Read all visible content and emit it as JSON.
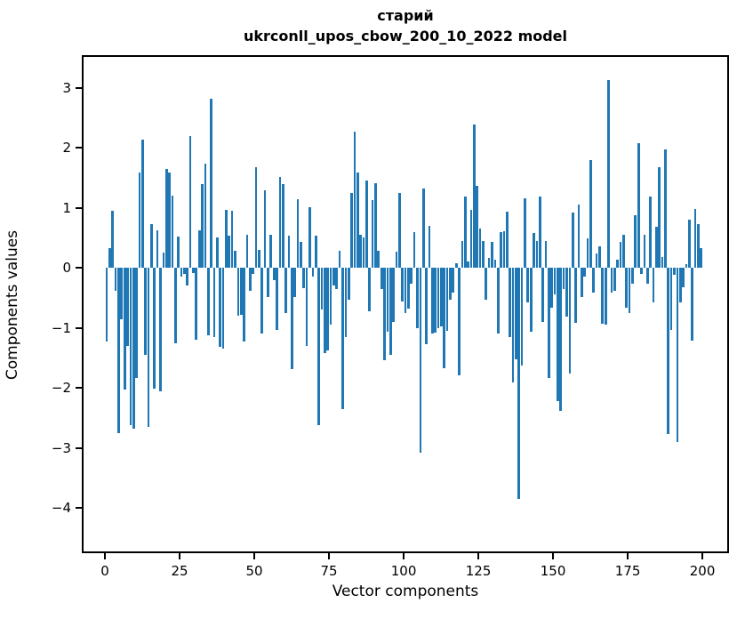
{
  "header": {
    "title_line1": "старий",
    "title_line2": "ukrconll_upos_cbow_200_10_2022 model"
  },
  "chart_data": {
    "type": "bar",
    "title": "старий",
    "subtitle": "ukrconll_upos_cbow_200_10_2022 model",
    "xlabel": "Vector components",
    "ylabel": "Components values",
    "bar_color": "#1f77b4",
    "axis_color": "#000000",
    "background_color": "#ffffff",
    "grid": false,
    "legend": false,
    "xlim": [
      -7.74,
      208.9
    ],
    "ylim": [
      -4.75,
      3.54
    ],
    "x_ticks": [
      0,
      25,
      50,
      75,
      100,
      125,
      150,
      175,
      200
    ],
    "x_tick_labels": [
      "0",
      "25",
      "50",
      "75",
      "100",
      "125",
      "150",
      "175",
      "200"
    ],
    "y_ticks": [
      3,
      2,
      1,
      0,
      -1,
      -2,
      -3,
      -4
    ],
    "y_tick_labels": [
      "3",
      "2",
      "1",
      "0",
      "−1",
      "−2",
      "−3",
      "−4"
    ],
    "x": "component index 0..199",
    "values": [
      -1.22,
      0.33,
      0.95,
      -0.38,
      -2.75,
      -0.85,
      -2.03,
      -1.3,
      -2.62,
      -2.68,
      -1.83,
      1.58,
      2.13,
      -1.45,
      -2.65,
      0.72,
      -2.01,
      0.62,
      -2.05,
      0.25,
      1.65,
      1.58,
      1.2,
      -1.25,
      0.52,
      -0.15,
      -0.1,
      -0.3,
      2.2,
      -0.08,
      -1.2,
      0.63,
      1.4,
      1.74,
      -1.12,
      2.82,
      -1.15,
      0.5,
      -1.32,
      -1.35,
      0.97,
      0.53,
      0.95,
      0.28,
      -0.8,
      -0.78,
      -1.22,
      0.55,
      -0.38,
      -0.1,
      1.67,
      0.3,
      -1.1,
      1.29,
      -0.48,
      0.55,
      -0.21,
      -1.03,
      1.51,
      1.39,
      -0.75,
      0.53,
      -1.69,
      -0.48,
      1.14,
      0.43,
      -0.34,
      -1.3,
      1.01,
      -0.15,
      0.54,
      -2.62,
      -0.7,
      -1.42,
      -1.37,
      -0.95,
      -0.29,
      -0.36,
      0.28,
      -2.35,
      -1.15,
      -0.53,
      1.24,
      2.26,
      1.59,
      0.55,
      0.5,
      1.46,
      -0.73,
      1.12,
      1.41,
      0.28,
      -0.36,
      -1.54,
      -1.07,
      -1.45,
      -0.9,
      0.27,
      1.25,
      -0.56,
      -0.75,
      -0.68,
      -0.26,
      0.6,
      -1.0,
      -3.07,
      1.32,
      -1.27,
      0.7,
      -1.1,
      -1.08,
      -1.0,
      -0.98,
      -1.67,
      -1.05,
      -0.53,
      -0.41,
      0.08,
      -1.79,
      0.45,
      1.18,
      0.1,
      0.97,
      2.38,
      1.37,
      0.65,
      0.44,
      -0.53,
      0.16,
      0.43,
      0.13,
      -1.1,
      0.6,
      0.61,
      0.93,
      -1.15,
      -1.91,
      -1.52,
      -3.84,
      -1.62,
      1.15,
      -0.58,
      -1.07,
      0.58,
      0.45,
      1.19,
      -0.9,
      0.45,
      -1.84,
      -0.67,
      -0.44,
      -2.22,
      -2.38,
      -0.36,
      -0.81,
      -1.76,
      0.92,
      -0.92,
      1.05,
      -0.48,
      -0.14,
      0.49,
      1.8,
      -0.41,
      0.24,
      0.35,
      -0.93,
      -0.95,
      3.13,
      -0.41,
      -0.39,
      0.13,
      0.43,
      0.55,
      -0.66,
      -0.75,
      -0.26,
      0.87,
      2.08,
      -0.1,
      0.55,
      -0.26,
      1.19,
      -0.58,
      0.68,
      1.67,
      0.18,
      1.97,
      -2.77,
      -1.03,
      -0.11,
      -2.9,
      -0.58,
      -0.33,
      0.06,
      0.8,
      -1.21,
      0.98,
      0.72,
      0.33
    ]
  }
}
